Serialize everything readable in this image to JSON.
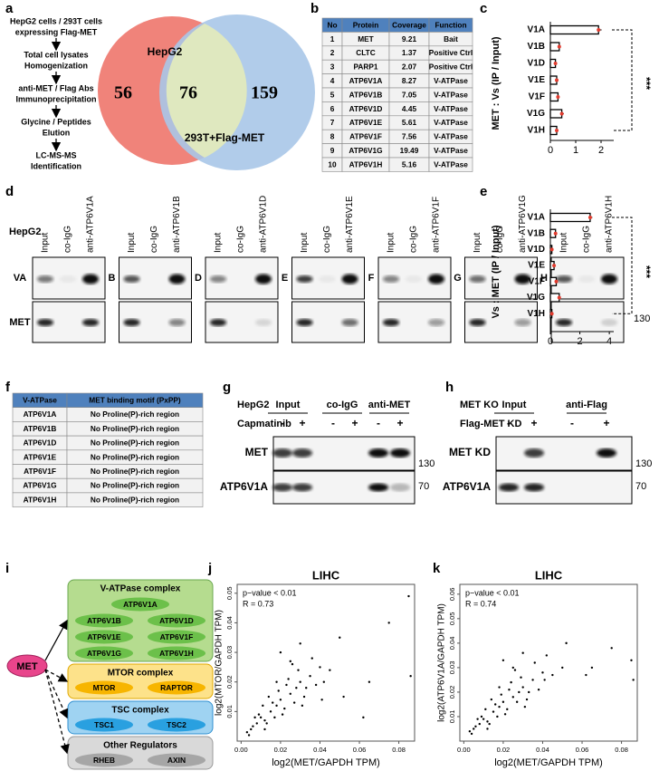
{
  "a": {
    "label": "a",
    "workflow": [
      "HepG2 cells / 293T cells",
      "expressing Flag-MET",
      "Total cell lysates",
      "Homogenization",
      "anti-MET / Flag Abs",
      "Immunoprecipitation",
      "Glycine / Peptides",
      "Elution",
      "LC-MS-MS",
      "Identification"
    ],
    "venn": {
      "left_label": "HepG2",
      "right_label": "293T+Flag-MET",
      "left_only": 56,
      "overlap": 76,
      "right_only": 159
    }
  },
  "b": {
    "label": "b",
    "table": {
      "header": [
        "No",
        "Protein",
        "Coverage",
        "Function"
      ],
      "rows": [
        [
          1,
          "MET",
          9.21,
          "Bait"
        ],
        [
          2,
          "CLTC",
          1.37,
          "Positive Ctrl"
        ],
        [
          3,
          "PARP1",
          2.07,
          "Positive Ctrl"
        ],
        [
          4,
          "ATP6V1A",
          8.27,
          "V-ATPase"
        ],
        [
          5,
          "ATP6V1B",
          7.05,
          "V-ATPase"
        ],
        [
          6,
          "ATP6V1D",
          4.45,
          "V-ATPase"
        ],
        [
          7,
          "ATP6V1E",
          5.61,
          "V-ATPase"
        ],
        [
          8,
          "ATP6V1F",
          7.56,
          "V-ATPase"
        ],
        [
          9,
          "ATP6V1G",
          19.49,
          "V-ATPase"
        ],
        [
          10,
          "ATP6V1H",
          5.16,
          "V-ATPase"
        ]
      ]
    }
  },
  "d": {
    "label": "d",
    "cell_line": "HepG2",
    "blots": [
      {
        "lanes": [
          "Input",
          "co-IgG",
          "anti-ATP6V1A"
        ],
        "row_label": "VA"
      },
      {
        "lanes": [
          "Input",
          "co-IgG",
          "anti-ATP6V1B"
        ],
        "row_label": "B"
      },
      {
        "lanes": [
          "Input",
          "co-IgG",
          "anti-ATP6V1D"
        ],
        "row_label": "D"
      },
      {
        "lanes": [
          "Input",
          "co-IgG",
          "anti-ATP6V1E"
        ],
        "row_label": "E"
      },
      {
        "lanes": [
          "Input",
          "co-IgG",
          "anti-ATP6V1F"
        ],
        "row_label": "F"
      },
      {
        "lanes": [
          "Input",
          "co-IgG",
          "anti-ATP6V1G"
        ],
        "row_label": "G"
      },
      {
        "lanes": [
          "Input",
          "co-IgG",
          "anti-ATP6V1H"
        ],
        "row_label": "H"
      }
    ],
    "lower_row_label": "MET",
    "marker": 130
  },
  "f": {
    "label": "f",
    "table": {
      "header": [
        "V-ATPase",
        "MET binding motif (PxPP)"
      ],
      "rows": [
        [
          "ATP6V1A",
          "No Proline(P)-rich region"
        ],
        [
          "ATP6V1B",
          "No Proline(P)-rich region"
        ],
        [
          "ATP6V1D",
          "No Proline(P)-rich region"
        ],
        [
          "ATP6V1E",
          "No Proline(P)-rich region"
        ],
        [
          "ATP6V1F",
          "No Proline(P)-rich region"
        ],
        [
          "ATP6V1G",
          "No Proline(P)-rich region"
        ],
        [
          "ATP6V1H",
          "No Proline(P)-rich region"
        ]
      ]
    }
  },
  "g": {
    "label": "g",
    "cell_line": "HepG2",
    "groups": [
      "Input",
      "co-IgG",
      "anti-MET"
    ],
    "treatment": "Capmatinib",
    "signs": [
      "-",
      "+"
    ],
    "rows": [
      "MET",
      "ATP6V1A"
    ],
    "markers": [
      130,
      70
    ]
  },
  "h": {
    "label": "h",
    "cell_line": "MET KO",
    "groups": [
      "Input",
      "anti-Flag"
    ],
    "treatment": "Flag-MET KD",
    "signs": [
      "-",
      "+"
    ],
    "rows": [
      "MET KD",
      "ATP6V1A"
    ],
    "markers": [
      130,
      70
    ]
  },
  "i": {
    "label": "i",
    "source": "MET",
    "groups": [
      {
        "title": "V-ATPase complex",
        "members": [
          "ATP6V1A",
          "ATP6V1B",
          "ATP6V1D",
          "ATP6V1E",
          "ATP6V1F",
          "ATP6V1G",
          "ATP6V1H"
        ]
      },
      {
        "title": "MTOR complex",
        "members": [
          "MTOR",
          "RAPTOR"
        ]
      },
      {
        "title": "TSC complex",
        "members": [
          "TSC1",
          "TSC2"
        ]
      },
      {
        "title": "Other Regulators",
        "members": [
          "RHEB",
          "AXIN"
        ]
      }
    ]
  },
  "chart_data": [
    {
      "type": "bar",
      "panel": "c",
      "ylabel": "MET : Vs (IP / Input)",
      "categories": [
        "V1A",
        "V1B",
        "V1D",
        "V1E",
        "V1F",
        "V1G",
        "V1H"
      ],
      "values": [
        1.9,
        0.35,
        0.2,
        0.25,
        0.3,
        0.45,
        0.25
      ],
      "errors": [
        0.12,
        0.05,
        0.04,
        0.04,
        0.05,
        0.08,
        0.04
      ],
      "color": "#e23b2e",
      "xlim": [
        0,
        2.5
      ],
      "xticks": [
        0,
        1,
        2
      ],
      "annotation": "***"
    },
    {
      "type": "bar",
      "panel": "e",
      "ylabel": "Vs : MET (IP / Input)",
      "categories": [
        "V1A",
        "V1B",
        "V1D",
        "V1E",
        "V1F",
        "V1G",
        "V1H"
      ],
      "values": [
        2.7,
        0.35,
        0.1,
        0.25,
        0.4,
        0.6,
        0.1
      ],
      "errors": [
        0.15,
        0.04,
        0.02,
        0.04,
        0.06,
        0.1,
        0.02
      ],
      "color": "#e23b2e",
      "xlim": [
        0,
        4.3
      ],
      "xticks": [
        0,
        2,
        4
      ],
      "annotation": "***"
    },
    {
      "type": "scatter",
      "panel": "j",
      "title": "LIHC",
      "xlabel": "log2(MET/GAPDH TPM)",
      "ylabel": "log2(MTOR/GAPDH TPM)",
      "annotations": [
        "p−value < 0.01",
        "R = 0.73"
      ],
      "xlim": [
        -0.002,
        0.088
      ],
      "ylim": [
        0,
        0.053
      ],
      "xticks": [
        {
          "value": 0,
          "label": "0.00"
        },
        0.02,
        0.04,
        0.06,
        0.08
      ],
      "yticks": [
        0.01,
        0.02,
        0.03,
        0.04,
        0.05
      ],
      "color": "#000000",
      "x": [
        0.005,
        0.008,
        0.01,
        0.012,
        0.015,
        0.018,
        0.02,
        0.022,
        0.025,
        0.028,
        0.03,
        0.032,
        0.035,
        0.038,
        0.04,
        0.045,
        0.05,
        0.003,
        0.006,
        0.009,
        0.011,
        0.013,
        0.016,
        0.019,
        0.021,
        0.024,
        0.027,
        0.029,
        0.033,
        0.036,
        0.042,
        0.014,
        0.017,
        0.023,
        0.026,
        0.031,
        0.004,
        0.007,
        0.012,
        0.02,
        0.052,
        0.062,
        0.065,
        0.075,
        0.085,
        0.086,
        0.03,
        0.041,
        0.018,
        0.025
      ],
      "y": [
        0.004,
        0.006,
        0.008,
        0.007,
        0.01,
        0.012,
        0.014,
        0.011,
        0.016,
        0.018,
        0.02,
        0.015,
        0.022,
        0.019,
        0.025,
        0.024,
        0.035,
        0.003,
        0.005,
        0.009,
        0.012,
        0.006,
        0.013,
        0.017,
        0.009,
        0.021,
        0.013,
        0.024,
        0.018,
        0.028,
        0.02,
        0.015,
        0.008,
        0.019,
        0.026,
        0.012,
        0.002,
        0.008,
        0.004,
        0.03,
        0.015,
        0.008,
        0.02,
        0.04,
        0.049,
        0.022,
        0.033,
        0.014,
        0.02,
        0.027
      ]
    },
    {
      "type": "scatter",
      "panel": "k",
      "title": "LIHC",
      "xlabel": "log2(MET/GAPDH TPM)",
      "ylabel": "log2(ATP6V1A/GAPDH TPM)",
      "annotations": [
        "p−value < 0.01",
        "R = 0.74"
      ],
      "xlim": [
        -0.002,
        0.088
      ],
      "ylim": [
        0,
        0.064
      ],
      "xticks": [
        {
          "value": 0,
          "label": "0.00"
        },
        0.02,
        0.04,
        0.06,
        0.08
      ],
      "yticks": [
        0.01,
        0.02,
        0.03,
        0.04,
        0.05,
        0.06
      ],
      "color": "#000000",
      "x": [
        0.005,
        0.008,
        0.01,
        0.012,
        0.015,
        0.018,
        0.02,
        0.022,
        0.025,
        0.028,
        0.03,
        0.032,
        0.035,
        0.038,
        0.04,
        0.045,
        0.05,
        0.003,
        0.006,
        0.009,
        0.011,
        0.013,
        0.016,
        0.019,
        0.021,
        0.024,
        0.027,
        0.029,
        0.033,
        0.036,
        0.042,
        0.014,
        0.017,
        0.023,
        0.026,
        0.031,
        0.004,
        0.007,
        0.012,
        0.02,
        0.052,
        0.062,
        0.065,
        0.075,
        0.085,
        0.086,
        0.03,
        0.041,
        0.018,
        0.025
      ],
      "y": [
        0.005,
        0.007,
        0.009,
        0.008,
        0.012,
        0.014,
        0.016,
        0.013,
        0.018,
        0.02,
        0.022,
        0.017,
        0.025,
        0.021,
        0.028,
        0.027,
        0.03,
        0.004,
        0.006,
        0.01,
        0.013,
        0.007,
        0.015,
        0.019,
        0.011,
        0.024,
        0.016,
        0.026,
        0.02,
        0.032,
        0.035,
        0.017,
        0.01,
        0.021,
        0.029,
        0.014,
        0.003,
        0.009,
        0.005,
        0.033,
        0.04,
        0.027,
        0.03,
        0.038,
        0.033,
        0.025,
        0.036,
        0.025,
        0.022,
        0.03
      ]
    }
  ]
}
